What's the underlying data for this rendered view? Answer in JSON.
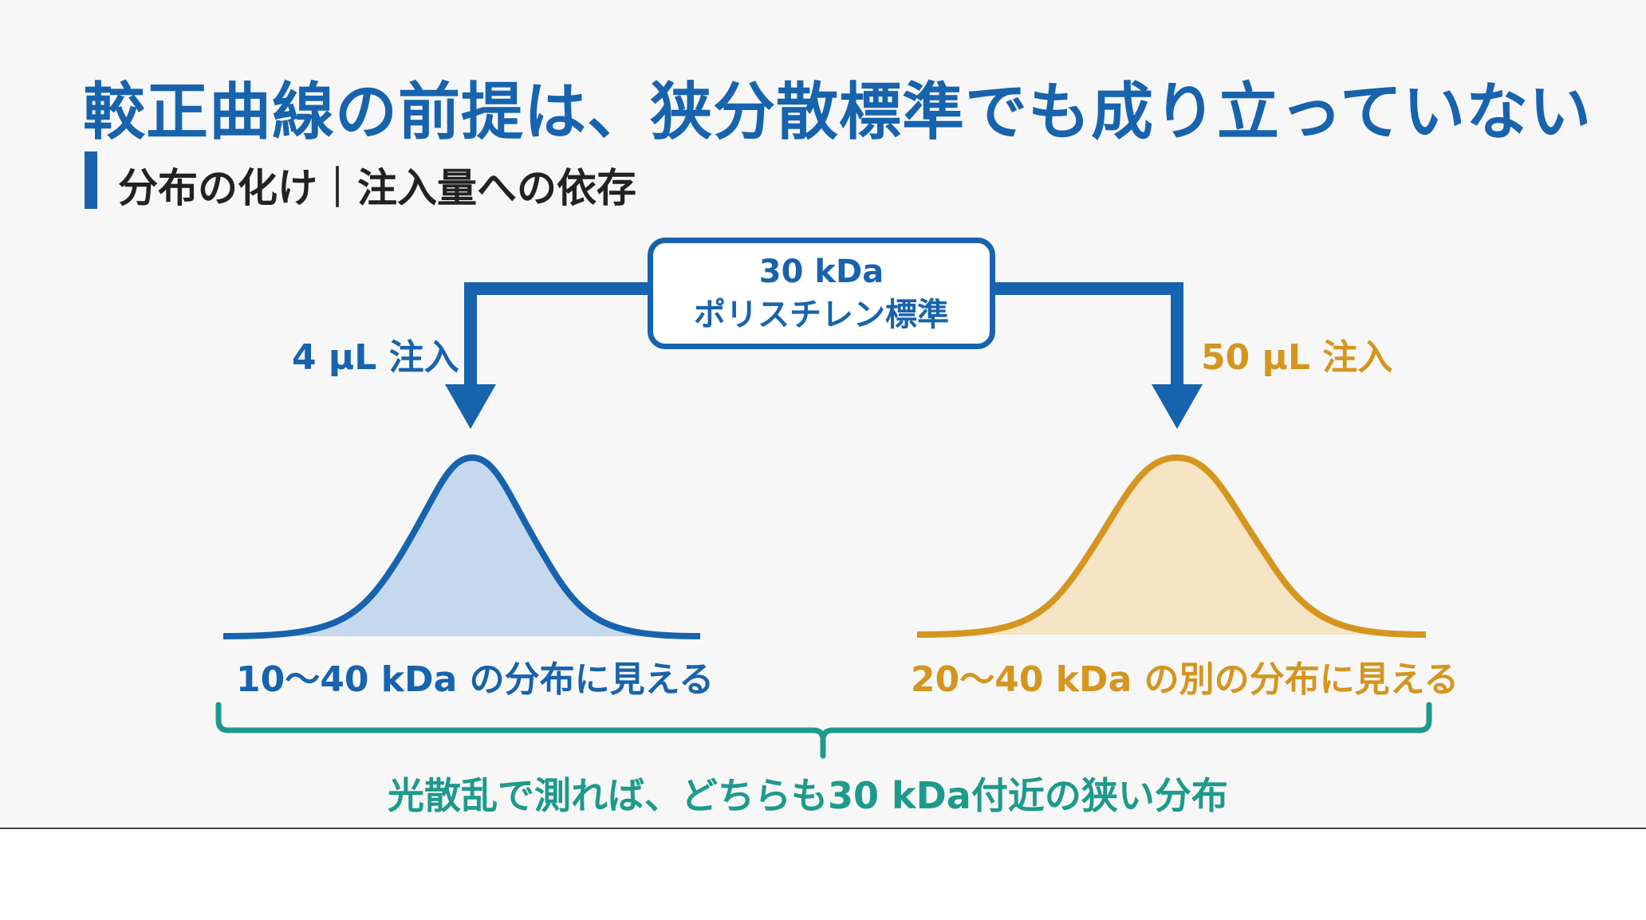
{
  "title": "較正曲線の前提は、狭分散標準でも成り立っていない",
  "subtitle": "分布の化け｜注入量への依存",
  "standard": {
    "line1": "30 kDa",
    "line2": "ポリスチレン標準"
  },
  "left": {
    "injection_label": "4 µL 注入",
    "result_label": "10〜40 kDa の分布に見える",
    "color": "#1763ad",
    "fill": "#c5d8ee"
  },
  "right": {
    "injection_label": "50 µL 注入",
    "result_label": "20〜40 kDa の別の分布に見える",
    "color": "#d4961f",
    "fill": "#f6e5c4"
  },
  "conclusion": "光散乱で測れば、どちらも30 kDa付近の狭い分布",
  "conclusion_color": "#1e9a8c"
}
